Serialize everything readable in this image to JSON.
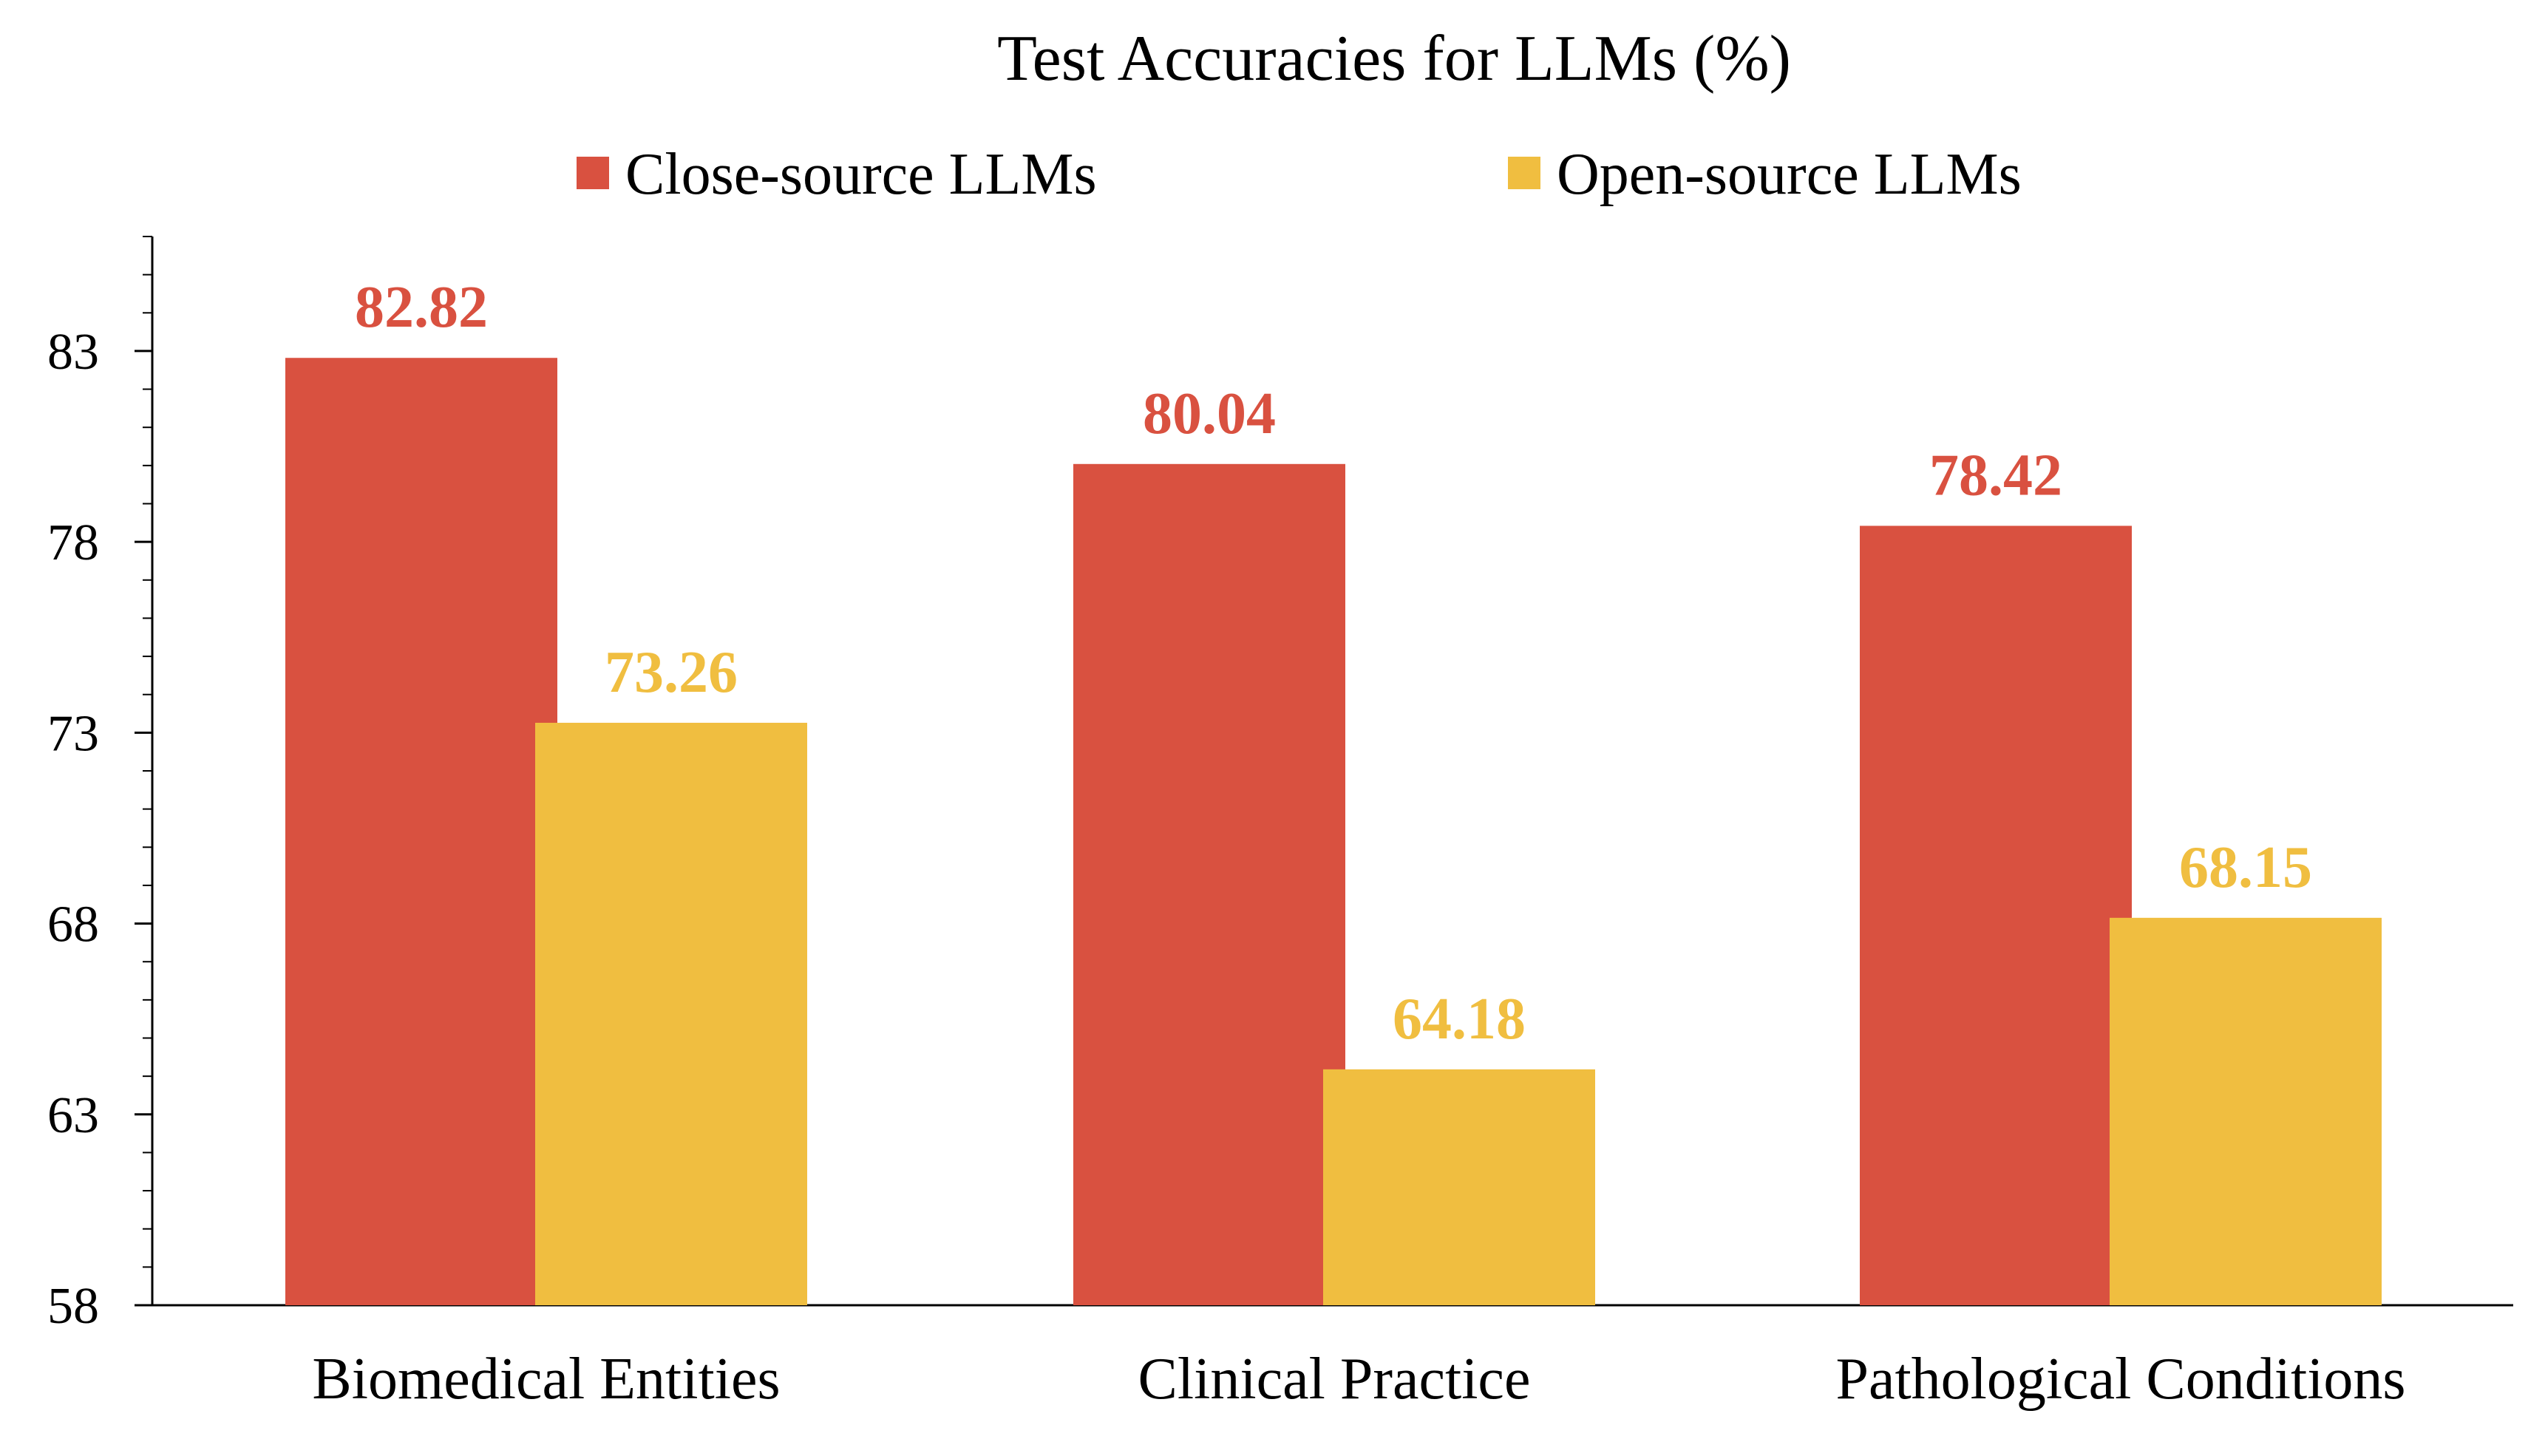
{
  "chart_data": {
    "type": "bar",
    "title": "Test Accuracies for LLMs (%)",
    "xlabel": "",
    "ylabel": "",
    "categories": [
      "Biomedical Entities",
      "Clinical Practice",
      "Pathological Conditions"
    ],
    "series": [
      {
        "name": "Close-source LLMs",
        "color": "#D95140",
        "values": [
          82.82,
          80.04,
          78.42
        ]
      },
      {
        "name": "Open-source LLMs",
        "color": "#F0BE40",
        "values": [
          73.26,
          64.18,
          68.15
        ]
      }
    ],
    "ylim": [
      58,
      86
    ],
    "yticks": [
      "58",
      "63",
      "68",
      "73",
      "78",
      "83"
    ],
    "value_labels": [
      [
        "82.82",
        "80.04",
        "78.42"
      ],
      [
        "73.26",
        "64.18",
        "68.15"
      ]
    ],
    "legend_position": "top-center",
    "grid": false,
    "minor_ticks": true
  }
}
